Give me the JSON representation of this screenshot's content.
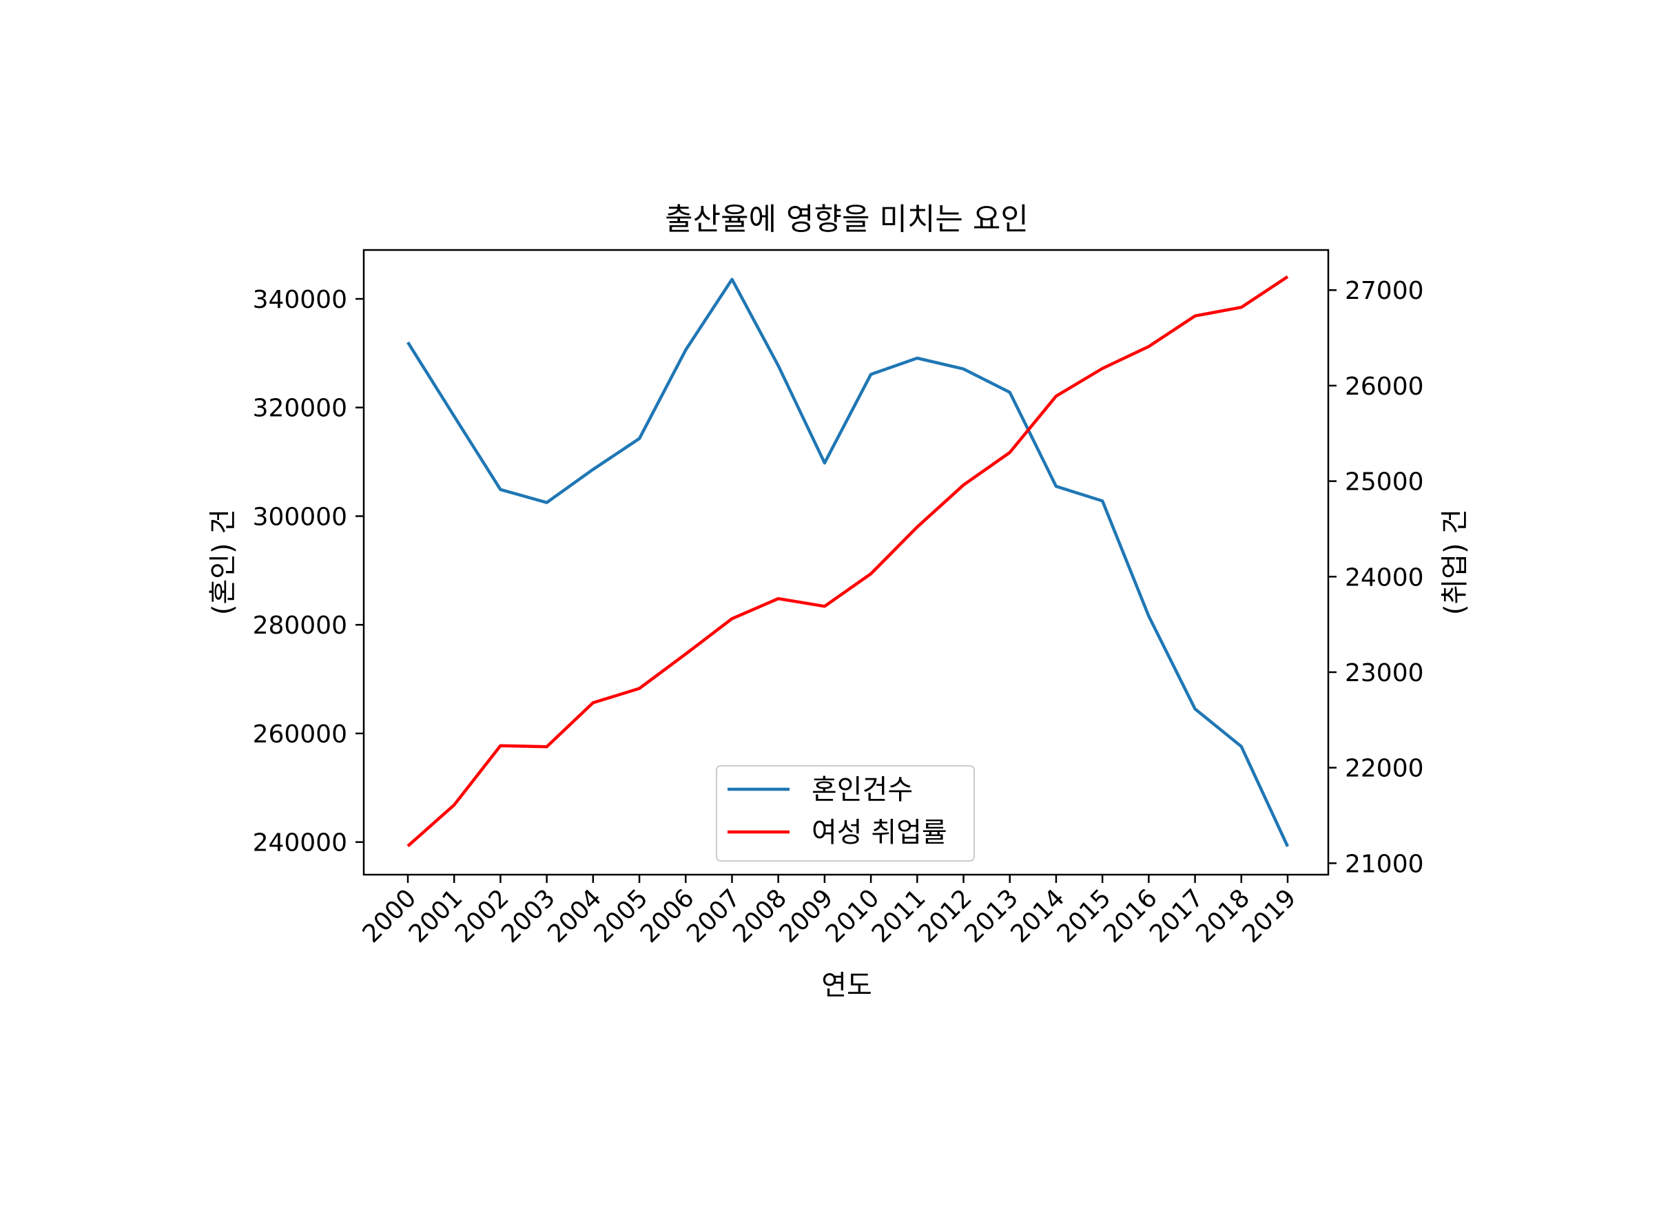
{
  "chart_data": {
    "type": "line",
    "title": "출산율에 영향을 미치는 요인",
    "xlabel": "연도",
    "ylabel_left": "(혼인) 건",
    "ylabel_right": "(취업) 건",
    "categories": [
      "2000",
      "2001",
      "2002",
      "2003",
      "2004",
      "2005",
      "2006",
      "2007",
      "2008",
      "2009",
      "2010",
      "2011",
      "2012",
      "2013",
      "2014",
      "2015",
      "2016",
      "2017",
      "2018",
      "2019"
    ],
    "ylim_left": [
      234000,
      349000
    ],
    "ylim_right": [
      20880,
      27420
    ],
    "yticks_left": [
      240000,
      260000,
      280000,
      300000,
      320000,
      340000
    ],
    "yticks_right": [
      21000,
      22000,
      23000,
      24000,
      25000,
      26000,
      27000
    ],
    "grid": false,
    "legend_position": "lower-center",
    "series": [
      {
        "name": "혼인건수",
        "axis": "left",
        "color": "#1f77b4",
        "values": [
          332000,
          318400,
          304900,
          302500,
          308600,
          314300,
          330600,
          343600,
          327700,
          309800,
          326100,
          329100,
          327100,
          322800,
          305500,
          302800,
          281600,
          264500,
          257600,
          239200
        ]
      },
      {
        "name": "여성 취업률",
        "axis": "right",
        "color": "#ff0000",
        "values": [
          21180,
          21610,
          22230,
          22220,
          22680,
          22830,
          23190,
          23560,
          23770,
          23690,
          24030,
          24520,
          24960,
          25300,
          25890,
          26180,
          26410,
          26730,
          26820,
          27140
        ]
      }
    ]
  }
}
